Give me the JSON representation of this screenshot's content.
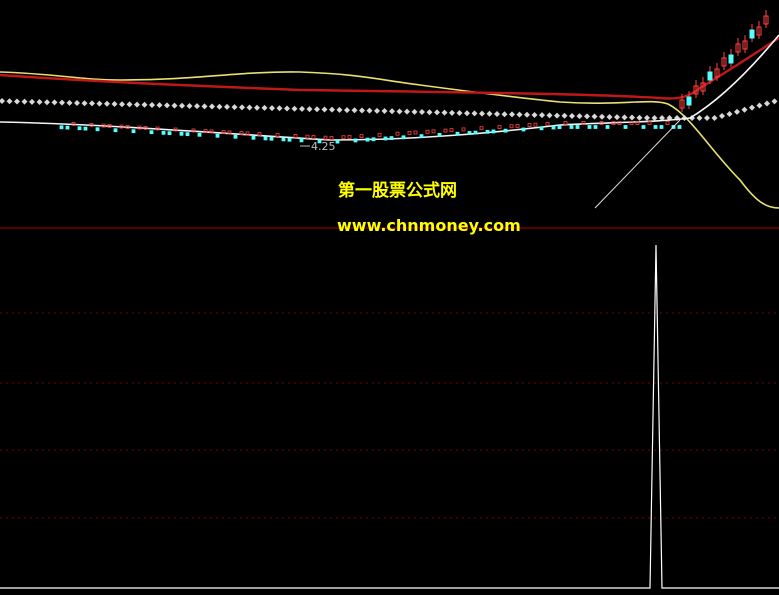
{
  "watermark": {
    "site_name": "第一股票公式网",
    "url": "www.chnmoney.com"
  },
  "price_panel": {
    "low_label": "4.25"
  }
}
